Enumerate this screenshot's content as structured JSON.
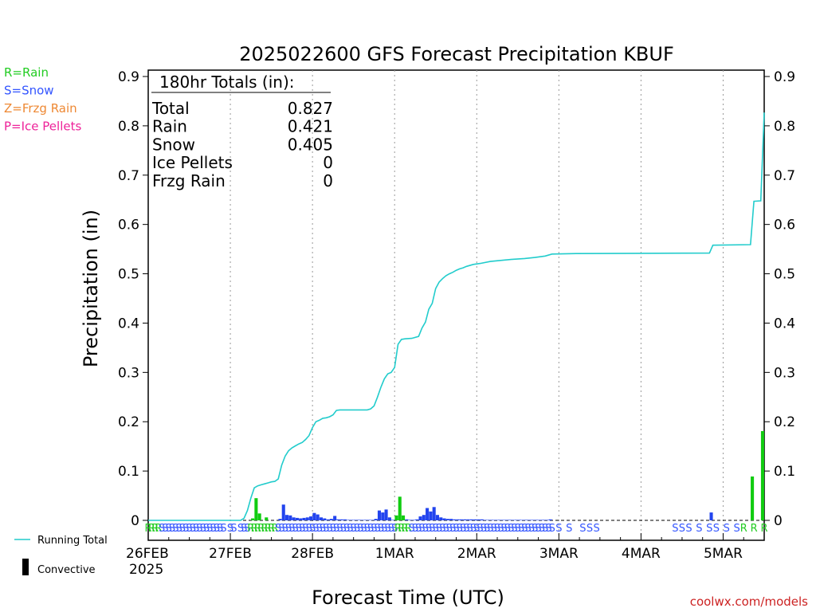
{
  "chart_data": {
    "type": "bar",
    "title": "2025022600 GFS Forecast Precipitation KBUF",
    "ylabel": "Precipitation (in)",
    "xlabel": "Forecast Time (UTC)",
    "ylim": [
      0,
      0.9
    ],
    "yticks": [
      "0",
      "0.1",
      "0.2",
      "0.3",
      "0.4",
      "0.5",
      "0.6",
      "0.7",
      "0.8",
      "0.9"
    ],
    "x_unit": "forecast hour",
    "xlim": [
      0,
      180
    ],
    "grid": "vertical dotted at day boundaries",
    "xticks": [
      {
        "hour": 0,
        "label": "26FEB",
        "sub": "2025"
      },
      {
        "hour": 24,
        "label": "27FEB"
      },
      {
        "hour": 48,
        "label": "28FEB"
      },
      {
        "hour": 72,
        "label": "1MAR"
      },
      {
        "hour": 96,
        "label": "2MAR"
      },
      {
        "hour": 120,
        "label": "3MAR"
      },
      {
        "hour": 144,
        "label": "4MAR"
      },
      {
        "hour": 168,
        "label": "5MAR"
      }
    ],
    "legend": [
      {
        "text": "R=Rain",
        "color": "#22cc22"
      },
      {
        "text": "S=Snow",
        "color": "#3355ff"
      },
      {
        "text": "Z=Frzg Rain",
        "color": "#ee8833"
      },
      {
        "text": "P=Ice Pellets",
        "color": "#ee2299"
      }
    ],
    "bottom_legend": {
      "running_total": "Running Total",
      "convective": "Convective"
    },
    "colors": {
      "rain": "#11cc11",
      "snow": "#2244ee",
      "running_total": "#22cccc"
    },
    "totals": {
      "header": "180hr Totals (in):",
      "rows": [
        {
          "label": "Total",
          "value": "0.827"
        },
        {
          "label": "Rain",
          "value": "0.421"
        },
        {
          "label": "Snow",
          "value": "0.405"
        },
        {
          "label": "Ice Pellets",
          "value": "0"
        },
        {
          "label": "Frzg Rain",
          "value": "0"
        }
      ]
    },
    "bars": [
      {
        "hour": 31,
        "value": 0.004,
        "type": "rain"
      },
      {
        "hour": 32,
        "value": 0.045,
        "type": "rain"
      },
      {
        "hour": 33,
        "value": 0.014,
        "type": "rain"
      },
      {
        "hour": 35,
        "value": 0.006,
        "type": "rain"
      },
      {
        "hour": 39,
        "value": 0.003,
        "type": "snow"
      },
      {
        "hour": 40,
        "value": 0.032,
        "type": "snow"
      },
      {
        "hour": 41,
        "value": 0.011,
        "type": "snow"
      },
      {
        "hour": 42,
        "value": 0.01,
        "type": "snow"
      },
      {
        "hour": 43,
        "value": 0.006,
        "type": "snow"
      },
      {
        "hour": 44,
        "value": 0.005,
        "type": "snow"
      },
      {
        "hour": 45,
        "value": 0.004,
        "type": "snow"
      },
      {
        "hour": 46,
        "value": 0.005,
        "type": "snow"
      },
      {
        "hour": 47,
        "value": 0.006,
        "type": "snow"
      },
      {
        "hour": 48,
        "value": 0.008,
        "type": "snow"
      },
      {
        "hour": 49,
        "value": 0.015,
        "type": "snow"
      },
      {
        "hour": 50,
        "value": 0.012,
        "type": "snow"
      },
      {
        "hour": 51,
        "value": 0.006,
        "type": "snow"
      },
      {
        "hour": 52,
        "value": 0.004,
        "type": "snow"
      },
      {
        "hour": 53,
        "value": 0.002,
        "type": "snow"
      },
      {
        "hour": 54,
        "value": 0.003,
        "type": "snow"
      },
      {
        "hour": 55,
        "value": 0.009,
        "type": "snow"
      },
      {
        "hour": 56,
        "value": 0.002,
        "type": "snow"
      },
      {
        "hour": 57,
        "value": 0.002,
        "type": "snow"
      },
      {
        "hour": 58,
        "value": 0.002,
        "type": "snow"
      },
      {
        "hour": 59,
        "value": 0.001,
        "type": "snow"
      },
      {
        "hour": 60,
        "value": 0.001,
        "type": "snow"
      },
      {
        "hour": 61,
        "value": 0.001,
        "type": "snow"
      },
      {
        "hour": 62,
        "value": 0.001,
        "type": "snow"
      },
      {
        "hour": 63,
        "value": 0.001,
        "type": "snow"
      },
      {
        "hour": 64,
        "value": 0.001,
        "type": "snow"
      },
      {
        "hour": 65,
        "value": 0.001,
        "type": "snow"
      },
      {
        "hour": 66,
        "value": 0.001,
        "type": "snow"
      },
      {
        "hour": 67,
        "value": 0.003,
        "type": "snow"
      },
      {
        "hour": 68,
        "value": 0.02,
        "type": "snow"
      },
      {
        "hour": 69,
        "value": 0.016,
        "type": "snow"
      },
      {
        "hour": 70,
        "value": 0.022,
        "type": "snow"
      },
      {
        "hour": 71,
        "value": 0.006,
        "type": "snow"
      },
      {
        "hour": 72,
        "value": 0.001,
        "type": "snow"
      },
      {
        "hour": 73,
        "value": 0.01,
        "type": "rain"
      },
      {
        "hour": 74,
        "value": 0.048,
        "type": "rain"
      },
      {
        "hour": 75,
        "value": 0.01,
        "type": "rain"
      },
      {
        "hour": 76,
        "value": 0.002,
        "type": "snow"
      },
      {
        "hour": 77,
        "value": 0.001,
        "type": "snow"
      },
      {
        "hour": 78,
        "value": 0.001,
        "type": "snow"
      },
      {
        "hour": 79,
        "value": 0.002,
        "type": "snow"
      },
      {
        "hour": 80,
        "value": 0.008,
        "type": "snow"
      },
      {
        "hour": 81,
        "value": 0.011,
        "type": "snow"
      },
      {
        "hour": 82,
        "value": 0.025,
        "type": "snow"
      },
      {
        "hour": 83,
        "value": 0.018,
        "type": "snow"
      },
      {
        "hour": 84,
        "value": 0.027,
        "type": "snow"
      },
      {
        "hour": 85,
        "value": 0.011,
        "type": "snow"
      },
      {
        "hour": 86,
        "value": 0.006,
        "type": "snow"
      },
      {
        "hour": 87,
        "value": 0.004,
        "type": "snow"
      },
      {
        "hour": 88,
        "value": 0.003,
        "type": "snow"
      },
      {
        "hour": 89,
        "value": 0.003,
        "type": "snow"
      },
      {
        "hour": 90,
        "value": 0.002,
        "type": "snow"
      },
      {
        "hour": 91,
        "value": 0.002,
        "type": "snow"
      },
      {
        "hour": 92,
        "value": 0.002,
        "type": "snow"
      },
      {
        "hour": 93,
        "value": 0.002,
        "type": "snow"
      },
      {
        "hour": 94,
        "value": 0.002,
        "type": "snow"
      },
      {
        "hour": 95,
        "value": 0.002,
        "type": "snow"
      },
      {
        "hour": 96,
        "value": 0.002,
        "type": "snow"
      },
      {
        "hour": 97,
        "value": 0.002,
        "type": "snow"
      },
      {
        "hour": 98,
        "value": 0.002,
        "type": "snow"
      },
      {
        "hour": 99,
        "value": 0.001,
        "type": "snow"
      },
      {
        "hour": 100,
        "value": 0.001,
        "type": "snow"
      },
      {
        "hour": 101,
        "value": 0.001,
        "type": "snow"
      },
      {
        "hour": 102,
        "value": 0.001,
        "type": "snow"
      },
      {
        "hour": 103,
        "value": 0.001,
        "type": "snow"
      },
      {
        "hour": 104,
        "value": 0.001,
        "type": "snow"
      },
      {
        "hour": 105,
        "value": 0.001,
        "type": "snow"
      },
      {
        "hour": 106,
        "value": 0.001,
        "type": "snow"
      },
      {
        "hour": 107,
        "value": 0.001,
        "type": "snow"
      },
      {
        "hour": 108,
        "value": 0.001,
        "type": "snow"
      },
      {
        "hour": 109,
        "value": 0.001,
        "type": "snow"
      },
      {
        "hour": 110,
        "value": 0.001,
        "type": "snow"
      },
      {
        "hour": 111,
        "value": 0.001,
        "type": "snow"
      },
      {
        "hour": 112,
        "value": 0.001,
        "type": "snow"
      },
      {
        "hour": 113,
        "value": 0.001,
        "type": "snow"
      },
      {
        "hour": 114,
        "value": 0.001,
        "type": "snow"
      },
      {
        "hour": 115,
        "value": 0.001,
        "type": "snow"
      },
      {
        "hour": 116,
        "value": 0.001,
        "type": "snow"
      },
      {
        "hour": 117,
        "value": 0.001,
        "type": "snow"
      },
      {
        "hour": 118,
        "value": 0.002,
        "type": "snow"
      },
      {
        "hour": 165,
        "value": 0.016,
        "type": "snow"
      },
      {
        "hour": 177,
        "value": 0.089,
        "type": "rain"
      },
      {
        "hour": 180,
        "value": 0.181,
        "type": "rain"
      }
    ],
    "running_total": [
      [
        0,
        0
      ],
      [
        27,
        0
      ],
      [
        28,
        0.004
      ],
      [
        29,
        0.02
      ],
      [
        30,
        0.045
      ],
      [
        31,
        0.066
      ],
      [
        32,
        0.07
      ],
      [
        33,
        0.072
      ],
      [
        34,
        0.074
      ],
      [
        35,
        0.076
      ],
      [
        36,
        0.078
      ],
      [
        37,
        0.079
      ],
      [
        38,
        0.084
      ],
      [
        39,
        0.112
      ],
      [
        40,
        0.13
      ],
      [
        41,
        0.141
      ],
      [
        42,
        0.147
      ],
      [
        43,
        0.151
      ],
      [
        44,
        0.155
      ],
      [
        45,
        0.158
      ],
      [
        46,
        0.164
      ],
      [
        47,
        0.172
      ],
      [
        48,
        0.188
      ],
      [
        49,
        0.2
      ],
      [
        50,
        0.203
      ],
      [
        51,
        0.207
      ],
      [
        52,
        0.208
      ],
      [
        53,
        0.21
      ],
      [
        54,
        0.214
      ],
      [
        55,
        0.223
      ],
      [
        56,
        0.224
      ],
      [
        64,
        0.224
      ],
      [
        65,
        0.226
      ],
      [
        66,
        0.232
      ],
      [
        67,
        0.25
      ],
      [
        68,
        0.27
      ],
      [
        69,
        0.287
      ],
      [
        70,
        0.297
      ],
      [
        71,
        0.3
      ],
      [
        72,
        0.31
      ],
      [
        73,
        0.357
      ],
      [
        74,
        0.367
      ],
      [
        75,
        0.368
      ],
      [
        77,
        0.369
      ],
      [
        79,
        0.373
      ],
      [
        80,
        0.39
      ],
      [
        81,
        0.402
      ],
      [
        82,
        0.428
      ],
      [
        83,
        0.44
      ],
      [
        84,
        0.47
      ],
      [
        85,
        0.483
      ],
      [
        86,
        0.49
      ],
      [
        87,
        0.496
      ],
      [
        88,
        0.5
      ],
      [
        89,
        0.503
      ],
      [
        90,
        0.507
      ],
      [
        91,
        0.51
      ],
      [
        92,
        0.512
      ],
      [
        93,
        0.515
      ],
      [
        95,
        0.519
      ],
      [
        97,
        0.521
      ],
      [
        100,
        0.525
      ],
      [
        103,
        0.527
      ],
      [
        106,
        0.529
      ],
      [
        110,
        0.531
      ],
      [
        113,
        0.533
      ],
      [
        116,
        0.536
      ],
      [
        118,
        0.54
      ],
      [
        125,
        0.541
      ],
      [
        164,
        0.542
      ],
      [
        165,
        0.558
      ],
      [
        176,
        0.559
      ],
      [
        177,
        0.647
      ],
      [
        179,
        0.648
      ],
      [
        180,
        0.827
      ]
    ],
    "type_strip": [
      {
        "from": 0,
        "to": 3,
        "char": "R"
      },
      {
        "from": 4,
        "to": 22,
        "char": "S"
      },
      {
        "from": 24,
        "to": 25,
        "char": "S"
      },
      {
        "from": 27,
        "to": 29,
        "char": "S"
      },
      {
        "from": 30,
        "to": 37,
        "char": "R"
      },
      {
        "from": 38,
        "to": 72,
        "char": "S"
      },
      {
        "from": 73,
        "to": 76,
        "char": "R"
      },
      {
        "from": 77,
        "to": 118,
        "char": "S"
      },
      {
        "from": 120,
        "to": 120,
        "char": "S"
      },
      {
        "from": 123,
        "to": 123,
        "char": "S"
      },
      {
        "from": 127,
        "to": 127,
        "char": "S"
      },
      {
        "from": 129,
        "to": 129,
        "char": "S"
      },
      {
        "from": 131,
        "to": 131,
        "char": "S"
      },
      {
        "from": 154,
        "to": 154,
        "char": "S"
      },
      {
        "from": 156,
        "to": 156,
        "char": "S"
      },
      {
        "from": 158,
        "to": 158,
        "char": "S"
      },
      {
        "from": 161,
        "to": 161,
        "char": "S"
      },
      {
        "from": 164,
        "to": 164,
        "char": "S"
      },
      {
        "from": 166,
        "to": 166,
        "char": "S"
      },
      {
        "from": 169,
        "to": 169,
        "char": "S"
      },
      {
        "from": 172,
        "to": 172,
        "char": "S"
      },
      {
        "from": 174,
        "to": 174,
        "char": "R"
      },
      {
        "from": 177,
        "to": 177,
        "char": "R"
      },
      {
        "from": 180,
        "to": 180,
        "char": "R"
      }
    ],
    "credit": "coolwx.com/models"
  }
}
